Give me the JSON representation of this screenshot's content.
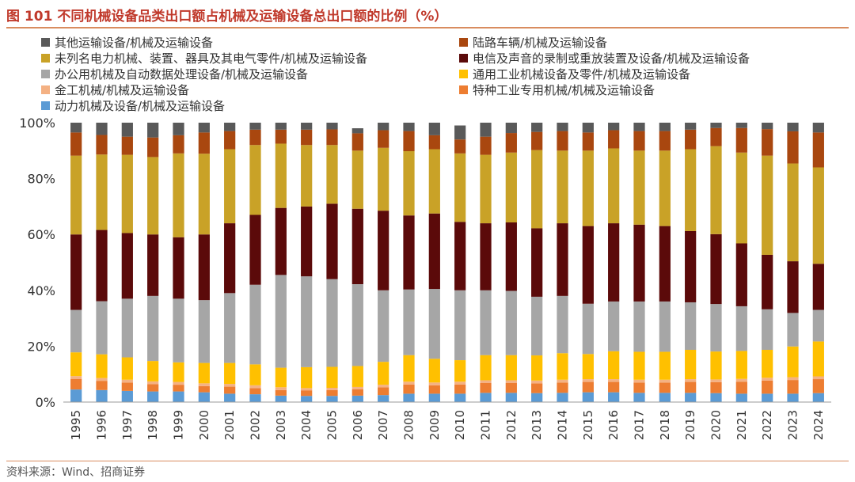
{
  "title": "图 101  不同机械设备品类出口额占机械及运输设备总出口额的比例（%）",
  "source": "资料来源：Wind、招商证券",
  "chart_data": {
    "type": "bar",
    "stacked": true,
    "title": "不同机械设备品类出口额占机械及运输设备总出口额的比例（%）",
    "categories": [
      "1995",
      "1996",
      "1997",
      "1998",
      "1999",
      "2000",
      "2001",
      "2002",
      "2003",
      "2004",
      "2005",
      "2006",
      "2007",
      "2008",
      "2009",
      "2010",
      "2011",
      "2012",
      "2013",
      "2014",
      "2015",
      "2016",
      "2017",
      "2018",
      "2019",
      "2020",
      "2021",
      "2022",
      "2023",
      "2024"
    ],
    "ylim": [
      0,
      100
    ],
    "yticks": [
      0,
      20,
      40,
      60,
      80,
      100
    ],
    "ytick_suffix": "%",
    "grid": false,
    "legend_position": "top-left",
    "series": [
      {
        "name": "动力机械及设备/机械及运输设备",
        "color": "#5b9bd5",
        "values": [
          4.5,
          4.3,
          4.0,
          3.8,
          3.8,
          3.5,
          3.0,
          2.8,
          2.3,
          2.2,
          2.2,
          2.3,
          2.5,
          3.0,
          3.0,
          3.0,
          3.3,
          3.3,
          3.2,
          3.3,
          3.5,
          3.5,
          3.3,
          3.3,
          3.3,
          3.2,
          3.0,
          3.0,
          3.0,
          3.2
        ]
      },
      {
        "name": "特种工业专用机械/机械及运输设备",
        "color": "#ed7d31",
        "values": [
          3.8,
          3.3,
          3.0,
          2.6,
          2.4,
          2.2,
          2.5,
          2.2,
          2.0,
          2.0,
          2.1,
          2.3,
          2.8,
          3.3,
          3.0,
          3.3,
          3.5,
          3.5,
          3.5,
          3.7,
          3.7,
          3.7,
          3.7,
          3.7,
          3.9,
          3.9,
          4.3,
          4.7,
          4.9,
          5.0
        ]
      },
      {
        "name": "金工机械/机械及运输设备",
        "color": "#f4b183",
        "values": [
          1.0,
          1.0,
          1.0,
          1.0,
          1.0,
          1.0,
          1.0,
          1.0,
          1.0,
          0.8,
          0.8,
          0.8,
          0.9,
          1.0,
          1.0,
          1.0,
          1.0,
          1.0,
          1.0,
          1.0,
          1.0,
          1.0,
          1.0,
          1.0,
          1.0,
          1.0,
          1.0,
          1.0,
          1.0,
          1.0
        ]
      },
      {
        "name": "通用工业机械设备及零件/机械及运输设备",
        "color": "#ffc000",
        "values": [
          8.5,
          8.5,
          8.0,
          7.3,
          7.0,
          7.3,
          7.5,
          7.5,
          7.0,
          7.5,
          7.5,
          7.5,
          8.2,
          9.5,
          8.5,
          7.7,
          9.0,
          9.0,
          9.0,
          9.5,
          9.0,
          10.0,
          10.0,
          10.0,
          10.5,
          10.0,
          10.0,
          10.0,
          11.0,
          12.5
        ]
      },
      {
        "name": "办公用机械及自动数据处理设备/机械及运输设备",
        "color": "#a6a6a6",
        "values": [
          15.2,
          19.0,
          21.0,
          23.3,
          22.8,
          22.5,
          25.0,
          28.5,
          33.2,
          32.5,
          31.4,
          29.3,
          25.6,
          23.5,
          25.0,
          25.0,
          23.2,
          23.0,
          21.0,
          20.5,
          18.0,
          17.8,
          18.0,
          18.0,
          17.0,
          17.0,
          16.0,
          14.5,
          12.0,
          11.3
        ]
      },
      {
        "name": "电信及声音的录制或重放装置及设备/机械及运输设备",
        "color": "#5b0a0a",
        "values": [
          27.0,
          25.5,
          23.5,
          22.0,
          22.0,
          23.5,
          25.0,
          25.0,
          24.0,
          25.0,
          27.0,
          27.0,
          28.5,
          26.5,
          27.0,
          24.5,
          24.0,
          24.5,
          24.5,
          26.0,
          27.8,
          28.0,
          27.5,
          27.0,
          25.5,
          25.0,
          22.5,
          19.5,
          18.5,
          16.5
        ]
      },
      {
        "name": "未列名电力机械、装置、器具及其电气零件/机械及运输设备",
        "color": "#c9a227",
        "values": [
          28.2,
          27.0,
          28.0,
          27.7,
          30.0,
          28.9,
          26.5,
          25.0,
          23.0,
          22.0,
          21.0,
          20.8,
          22.5,
          23.0,
          23.0,
          24.5,
          24.5,
          25.0,
          28.0,
          26.0,
          27.0,
          26.8,
          26.5,
          27.0,
          29.3,
          31.5,
          32.5,
          35.5,
          35.0,
          34.5
        ]
      },
      {
        "name": "陆路车辆/机械及运输设备",
        "color": "#a9470f",
        "values": [
          8.3,
          7.0,
          6.5,
          7.0,
          6.5,
          7.6,
          6.5,
          5.5,
          5.0,
          5.5,
          5.6,
          6.2,
          6.3,
          7.2,
          5.0,
          5.0,
          6.5,
          7.0,
          6.5,
          7.0,
          6.5,
          6.5,
          7.0,
          7.0,
          7.0,
          6.5,
          8.8,
          9.5,
          11.5,
          12.5
        ]
      },
      {
        "name": "其他运输设备/机械及运输设备",
        "color": "#595959",
        "values": [
          3.5,
          4.4,
          5.0,
          5.3,
          4.5,
          3.5,
          3.0,
          2.5,
          2.5,
          2.5,
          2.4,
          1.8,
          2.7,
          3.0,
          4.5,
          5.0,
          5.0,
          3.7,
          3.3,
          3.0,
          3.5,
          2.7,
          3.0,
          3.0,
          2.5,
          1.9,
          1.9,
          2.3,
          3.1,
          3.5
        ]
      }
    ]
  }
}
